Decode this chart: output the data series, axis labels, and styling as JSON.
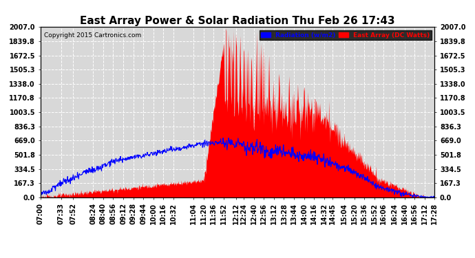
{
  "title": "East Array Power & Solar Radiation Thu Feb 26 17:43",
  "copyright": "Copyright 2015 Cartronics.com",
  "legend_radiation": "Radiation (w/m2)",
  "legend_east_array": "East Array (DC Watts)",
  "ymax": 2007.0,
  "ymin": 0.0,
  "yticks": [
    0.0,
    167.3,
    334.5,
    501.8,
    669.0,
    836.3,
    1003.5,
    1170.8,
    1338.0,
    1505.3,
    1672.5,
    1839.8,
    2007.0
  ],
  "background_color": "#ffffff",
  "plot_bg_color": "#d8d8d8",
  "grid_color": "#ffffff",
  "radiation_color": "#0000ff",
  "east_array_color": "#ff0000",
  "title_fontsize": 11,
  "tick_fontsize": 7,
  "xtick_labels": [
    "07:00",
    "07:33",
    "07:52",
    "08:24",
    "08:40",
    "08:56",
    "09:12",
    "09:28",
    "09:44",
    "10:00",
    "10:16",
    "10:32",
    "11:04",
    "11:20",
    "11:36",
    "11:52",
    "12:12",
    "12:24",
    "12:40",
    "12:56",
    "13:12",
    "13:28",
    "13:44",
    "14:00",
    "14:16",
    "14:32",
    "14:45",
    "15:04",
    "15:20",
    "15:36",
    "15:52",
    "16:06",
    "16:24",
    "16:40",
    "16:56",
    "17:12",
    "17:28"
  ]
}
